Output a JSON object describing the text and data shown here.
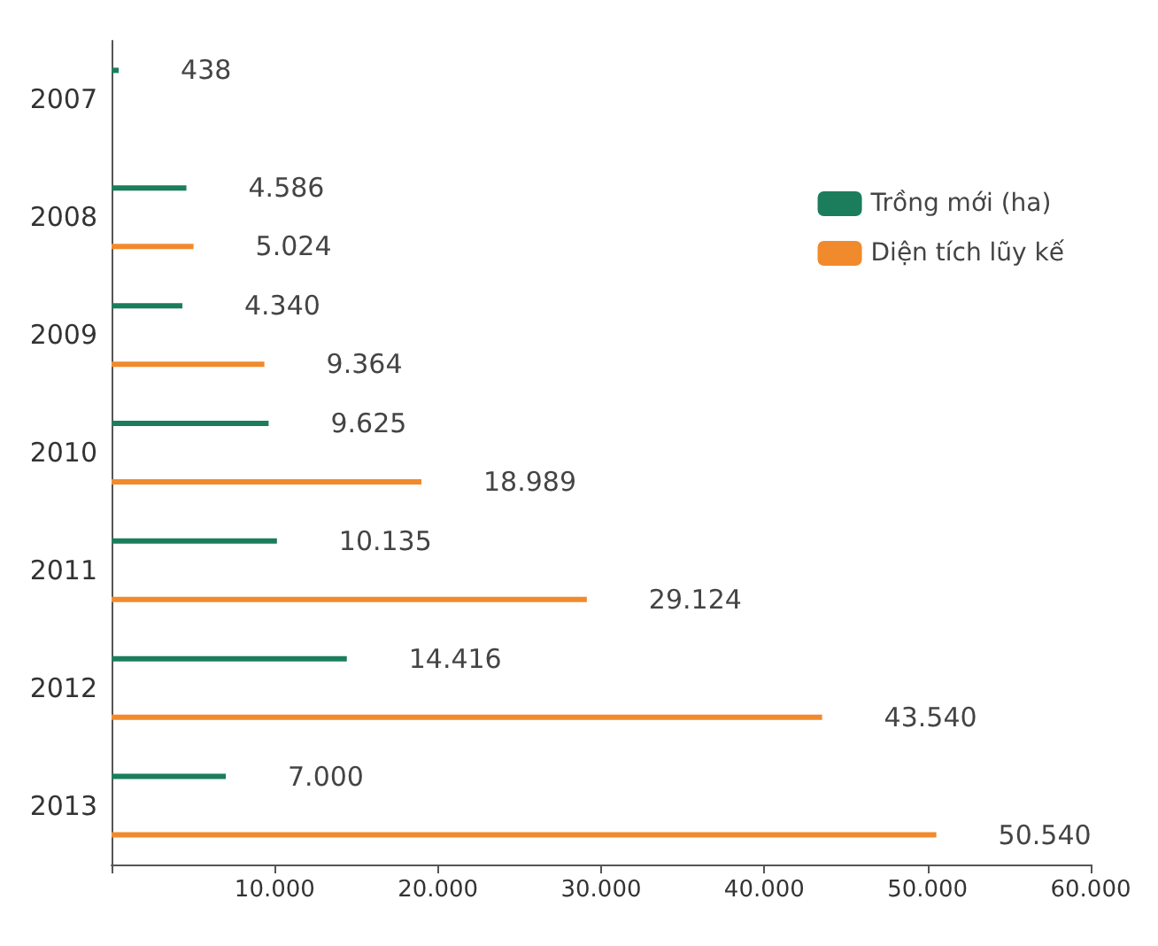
{
  "chart_data": {
    "type": "bar",
    "orientation": "horizontal",
    "categories": [
      "2007",
      "2008",
      "2009",
      "2010",
      "2011",
      "2012",
      "2013"
    ],
    "series": [
      {
        "name": "Trồng mới (ha)",
        "color": "#1b7d5c",
        "values": [
          438,
          4586,
          4340,
          9625,
          10135,
          14416,
          7000
        ],
        "value_labels": [
          "438",
          "4.586",
          "4.340",
          "9.625",
          "10.135",
          "14.416",
          "7.000"
        ]
      },
      {
        "name": "Diện tích lũy kế",
        "color": "#f18a2c",
        "values": [
          null,
          5024,
          9364,
          18989,
          29124,
          43540,
          50540
        ],
        "value_labels": [
          null,
          "5.024",
          "9.364",
          "18.989",
          "29.124",
          "43.540",
          "50.540"
        ]
      }
    ],
    "xlim": [
      0,
      60000
    ],
    "xticks": [
      {
        "value": 0,
        "label": null
      },
      {
        "value": 10000,
        "label": "10.000"
      },
      {
        "value": 20000,
        "label": "20.000"
      },
      {
        "value": 30000,
        "label": "30.000"
      },
      {
        "value": 40000,
        "label": "40.000"
      },
      {
        "value": 50000,
        "label": "50.000"
      },
      {
        "value": 60000,
        "label": "60.000"
      }
    ],
    "grid": false,
    "legend": "top right"
  }
}
